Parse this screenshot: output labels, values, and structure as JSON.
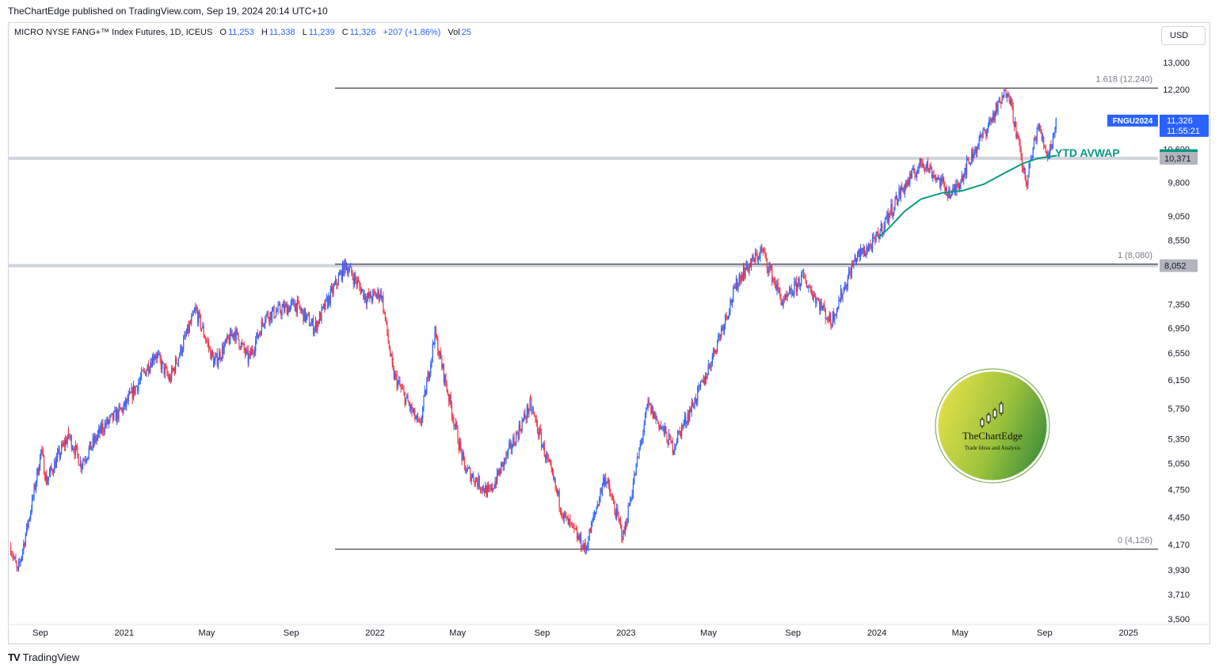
{
  "published": "TheChartEdge published on TradingView.com, Sep 19, 2024 20:14 UTC+10",
  "legend": {
    "symbol": "MICRO NYSE FANG+™ Index Futures, 1D, ICEUS",
    "o_label": "O",
    "o_value": "11,253",
    "h_label": "H",
    "h_value": "11,338",
    "l_label": "L",
    "l_value": "11,239",
    "c_label": "C",
    "c_value": "11,326",
    "change": "+207 (+1.86%)",
    "vol_label": "Vol",
    "vol_value": "25"
  },
  "currency": "USD",
  "footer": {
    "logo": "TV",
    "brand": "TradingView"
  },
  "watermark": {
    "name": "TheChartEdge",
    "tagline": "Trade Ideas and Analysis"
  },
  "colors": {
    "up": "#2962ff",
    "down": "#f23645",
    "avwap": "#089981",
    "fib": "#131722",
    "hline": "#d1d4dc",
    "last_price": "#2962ff"
  },
  "chart_data": {
    "type": "candlestick",
    "title": "MICRO NYSE FANG+™ Index Futures, 1D, ICEUS",
    "x_range": [
      "2020-07-01",
      "2025-03-31"
    ],
    "x_ticks": [
      {
        "date": "2020-09-01",
        "label": "Sep"
      },
      {
        "date": "2021-01-01",
        "label": "2021"
      },
      {
        "date": "2021-05-01",
        "label": "May"
      },
      {
        "date": "2021-09-01",
        "label": "Sep"
      },
      {
        "date": "2022-01-01",
        "label": "2022"
      },
      {
        "date": "2022-05-01",
        "label": "May"
      },
      {
        "date": "2022-09-01",
        "label": "Sep"
      },
      {
        "date": "2023-01-01",
        "label": "2023"
      },
      {
        "date": "2023-05-01",
        "label": "May"
      },
      {
        "date": "2023-09-01",
        "label": "Sep"
      },
      {
        "date": "2024-01-01",
        "label": "2024"
      },
      {
        "date": "2024-05-01",
        "label": "May"
      },
      {
        "date": "2024-09-01",
        "label": "Sep"
      },
      {
        "date": "2025-01-01",
        "label": "2025"
      }
    ],
    "y_scale": "log",
    "y_ticks": [
      {
        "value": 13000,
        "label": "13,000"
      },
      {
        "value": 12200,
        "label": "12,200"
      },
      {
        "value": 10600,
        "label": "10,600"
      },
      {
        "value": 9800,
        "label": "9,800"
      },
      {
        "value": 9050,
        "label": "9,050"
      },
      {
        "value": 8550,
        "label": "8,550"
      },
      {
        "value": 7350,
        "label": "7,350"
      },
      {
        "value": 6950,
        "label": "6,950"
      },
      {
        "value": 6550,
        "label": "6,550"
      },
      {
        "value": 6150,
        "label": "6,150"
      },
      {
        "value": 5750,
        "label": "5,750"
      },
      {
        "value": 5350,
        "label": "5,350"
      },
      {
        "value": 5050,
        "label": "5,050"
      },
      {
        "value": 4750,
        "label": "4,750"
      },
      {
        "value": 4450,
        "label": "4,450"
      },
      {
        "value": 4170,
        "label": "4,170"
      },
      {
        "value": 3930,
        "label": "3,930"
      },
      {
        "value": 3710,
        "label": "3,710"
      },
      {
        "value": 3500,
        "label": "3,500"
      }
    ],
    "price_path": [
      [
        "2020-07-20",
        4150
      ],
      [
        "2020-07-30",
        3900
      ],
      [
        "2020-08-20",
        4600
      ],
      [
        "2020-09-02",
        5200
      ],
      [
        "2020-09-10",
        4850
      ],
      [
        "2020-10-12",
        5400
      ],
      [
        "2020-10-30",
        5050
      ],
      [
        "2020-12-01",
        5500
      ],
      [
        "2020-12-31",
        5750
      ],
      [
        "2021-02-15",
        6550
      ],
      [
        "2021-03-08",
        6150
      ],
      [
        "2021-04-15",
        7250
      ],
      [
        "2021-05-12",
        6400
      ],
      [
        "2021-06-10",
        6900
      ],
      [
        "2021-07-01",
        6450
      ],
      [
        "2021-07-25",
        7150
      ],
      [
        "2021-09-07",
        7350
      ],
      [
        "2021-10-05",
        6950
      ],
      [
        "2021-11-19",
        8080
      ],
      [
        "2021-12-20",
        7450
      ],
      [
        "2022-01-10",
        7550
      ],
      [
        "2022-01-27",
        6250
      ],
      [
        "2022-03-07",
        5500
      ],
      [
        "2022-03-29",
        6850
      ],
      [
        "2022-05-11",
        5000
      ],
      [
        "2022-06-16",
        4700
      ],
      [
        "2022-08-15",
        5800
      ],
      [
        "2022-10-03",
        4450
      ],
      [
        "2022-11-03",
        4126
      ],
      [
        "2022-12-01",
        4900
      ],
      [
        "2022-12-28",
        4250
      ],
      [
        "2023-02-02",
        5800
      ],
      [
        "2023-03-10",
        5250
      ],
      [
        "2023-04-25",
        6150
      ],
      [
        "2023-06-15",
        7850
      ],
      [
        "2023-07-18",
        8350
      ],
      [
        "2023-08-18",
        7350
      ],
      [
        "2023-09-15",
        7850
      ],
      [
        "2023-10-26",
        7050
      ],
      [
        "2023-12-01",
        8200
      ],
      [
        "2023-12-28",
        8500
      ],
      [
        "2024-02-05",
        9600
      ],
      [
        "2024-03-08",
        10300
      ],
      [
        "2024-04-19",
        9500
      ],
      [
        "2024-05-20",
        10500
      ],
      [
        "2024-07-10",
        12240
      ],
      [
        "2024-08-05",
        9750
      ],
      [
        "2024-08-22",
        11200
      ],
      [
        "2024-09-06",
        10450
      ],
      [
        "2024-09-19",
        11326
      ]
    ],
    "series": [
      {
        "name": "YTD AVWAP",
        "points": [
          [
            "2024-01-03",
            8600
          ],
          [
            "2024-01-20",
            8820
          ],
          [
            "2024-02-10",
            9150
          ],
          [
            "2024-03-05",
            9420
          ],
          [
            "2024-04-05",
            9560
          ],
          [
            "2024-05-05",
            9610
          ],
          [
            "2024-06-05",
            9760
          ],
          [
            "2024-07-05",
            10020
          ],
          [
            "2024-08-01",
            10250
          ],
          [
            "2024-08-22",
            10370
          ],
          [
            "2024-09-19",
            10440
          ]
        ]
      }
    ],
    "hlines": [
      {
        "value": 12240,
        "label": "1.618 (12,240)",
        "from": "2021-11-19"
      },
      {
        "value": 8080,
        "label": "1 (8,080)",
        "from": "2021-11-19"
      },
      {
        "value": 4126,
        "label": "0 (4,126)",
        "from": "2021-11-19"
      }
    ],
    "horizontal_levels": [
      10371,
      8052
    ],
    "annotations": [
      {
        "text": "YTD AVWAP"
      }
    ],
    "price_labels": [
      {
        "value": 11326,
        "label": "11,326",
        "sub": "11:55:21",
        "tag": "FNGU2024"
      },
      {
        "value": 10440,
        "label": "10,440"
      },
      {
        "value": 10371,
        "label": "10,371"
      },
      {
        "value": 8052,
        "label": "8,052"
      }
    ],
    "last": {
      "open": 11253,
      "high": 11338,
      "low": 11239,
      "close": 11326,
      "change": 207,
      "change_pct": 1.86,
      "volume": 25
    }
  }
}
